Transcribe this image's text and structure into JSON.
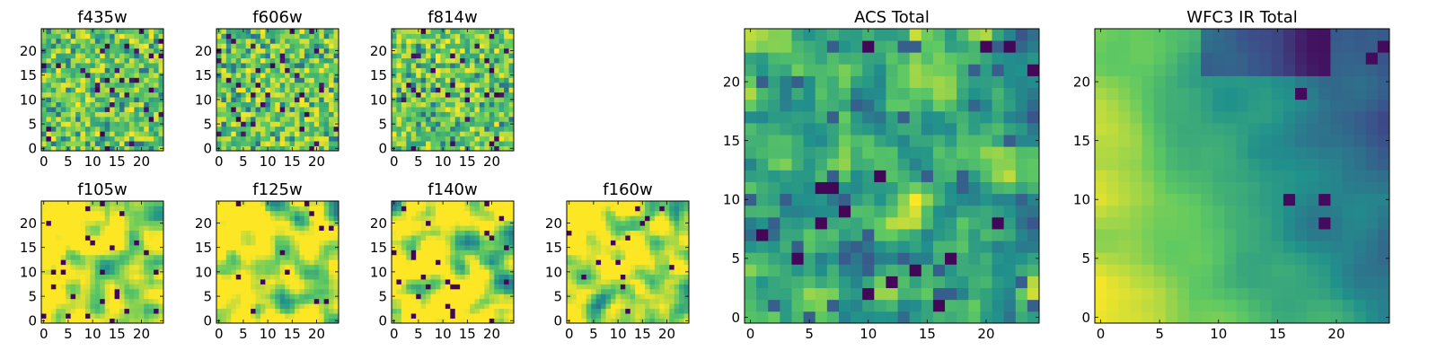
{
  "chart_data": [
    {
      "type": "heatmap",
      "title": "f435w",
      "xticks": [
        "0",
        "5",
        "10",
        "15",
        "20"
      ],
      "yticks": [
        "0",
        "5",
        "10",
        "15",
        "20"
      ],
      "grid_size": [
        25,
        25
      ],
      "colormap": "viridis",
      "value_range": [
        0,
        1
      ],
      "field": "random"
    },
    {
      "type": "heatmap",
      "title": "f606w",
      "xticks": [
        "0",
        "5",
        "10",
        "15",
        "20"
      ],
      "yticks": [
        "0",
        "5",
        "10",
        "15",
        "20"
      ],
      "grid_size": [
        25,
        25
      ],
      "colormap": "viridis",
      "value_range": [
        0,
        1
      ],
      "field": "random"
    },
    {
      "type": "heatmap",
      "title": "f814w",
      "xticks": [
        "0",
        "5",
        "10",
        "15",
        "20"
      ],
      "yticks": [
        "0",
        "5",
        "10",
        "15",
        "20"
      ],
      "grid_size": [
        25,
        25
      ],
      "colormap": "viridis",
      "value_range": [
        0,
        1
      ],
      "field": "random"
    },
    {
      "type": "heatmap",
      "title": "f105w",
      "xticks": [
        "0",
        "5",
        "10",
        "15",
        "20"
      ],
      "yticks": [
        "0",
        "5",
        "10",
        "15",
        "20"
      ],
      "grid_size": [
        25,
        25
      ],
      "colormap": "viridis",
      "value_range": [
        0,
        1
      ],
      "field": "smooth"
    },
    {
      "type": "heatmap",
      "title": "f125w",
      "xticks": [
        "0",
        "5",
        "10",
        "15",
        "20"
      ],
      "yticks": [
        "0",
        "5",
        "10",
        "15",
        "20"
      ],
      "grid_size": [
        25,
        25
      ],
      "colormap": "viridis",
      "value_range": [
        0,
        1
      ],
      "field": "smooth"
    },
    {
      "type": "heatmap",
      "title": "f140w",
      "xticks": [
        "0",
        "5",
        "10",
        "15",
        "20"
      ],
      "yticks": [
        "0",
        "5",
        "10",
        "15",
        "20"
      ],
      "grid_size": [
        25,
        25
      ],
      "colormap": "viridis",
      "value_range": [
        0,
        1
      ],
      "field": "smooth"
    },
    {
      "type": "heatmap",
      "title": "f160w",
      "xticks": [
        "0",
        "5",
        "10",
        "15",
        "20"
      ],
      "yticks": [
        "0",
        "5",
        "10",
        "15",
        "20"
      ],
      "grid_size": [
        25,
        25
      ],
      "colormap": "viridis",
      "value_range": [
        0,
        1
      ],
      "field": "smooth"
    },
    {
      "type": "heatmap",
      "title": "ACS Total",
      "xticks": [
        "0",
        "5",
        "10",
        "15",
        "20"
      ],
      "yticks": [
        "0",
        "5",
        "10",
        "15",
        "20"
      ],
      "grid_size": [
        25,
        25
      ],
      "colormap": "viridis",
      "value_range": [
        0,
        1
      ],
      "field": "mixed"
    },
    {
      "type": "heatmap",
      "title": "WFC3 IR Total",
      "xticks": [
        "0",
        "5",
        "10",
        "15",
        "20"
      ],
      "yticks": [
        "0",
        "5",
        "10",
        "15",
        "20"
      ],
      "grid_size": [
        25,
        25
      ],
      "colormap": "viridis",
      "value_range": [
        0,
        1
      ],
      "field": "gradient"
    }
  ],
  "colors": {
    "viridis_stops": [
      "#440154",
      "#3b528b",
      "#21918c",
      "#5ec962",
      "#fde725"
    ],
    "frame": "#000000",
    "background": "#ffffff"
  }
}
